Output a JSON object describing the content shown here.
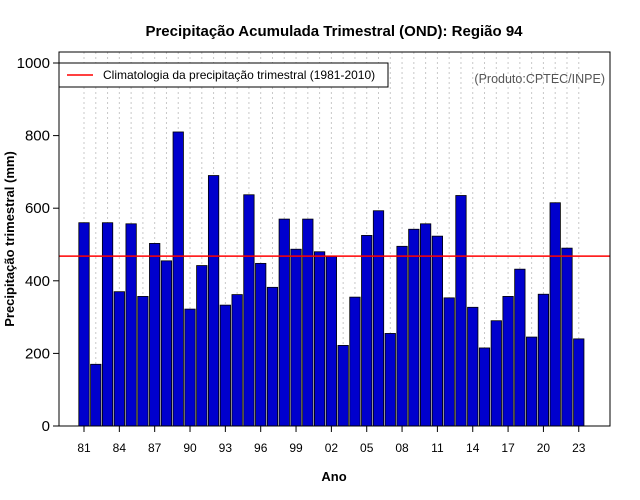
{
  "chart_data": {
    "type": "bar",
    "title": "Precipitação Acumulada Trimestral (OND): Região 94",
    "xlabel": "Ano",
    "ylabel": "Precipitação trimestral (mm)",
    "credit": "(Produto:CPTEC/INPE)",
    "ylim": [
      0,
      1000
    ],
    "yticks": [
      0,
      200,
      400,
      600,
      800,
      1000
    ],
    "xtick_labels": [
      "81",
      "84",
      "87",
      "90",
      "93",
      "96",
      "99",
      "02",
      "05",
      "08",
      "11",
      "14",
      "17",
      "20",
      "23"
    ],
    "grid": true,
    "years": [
      1981,
      1982,
      1983,
      1984,
      1985,
      1986,
      1987,
      1988,
      1989,
      1990,
      1991,
      1992,
      1993,
      1994,
      1995,
      1996,
      1997,
      1998,
      1999,
      2000,
      2001,
      2002,
      2003,
      2004,
      2005,
      2006,
      2007,
      2008,
      2009,
      2010,
      2011,
      2012,
      2013,
      2014,
      2015,
      2016,
      2017,
      2018,
      2019,
      2020,
      2021,
      2022,
      2023
    ],
    "values": [
      560,
      170,
      560,
      370,
      557,
      357,
      503,
      455,
      810,
      322,
      442,
      690,
      333,
      362,
      637,
      448,
      382,
      570,
      487,
      570,
      480,
      467,
      222,
      355,
      525,
      593,
      255,
      495,
      542,
      557,
      523,
      353,
      635,
      327,
      215,
      290,
      357,
      432,
      245,
      363,
      615,
      490,
      240
    ],
    "bar_color": "#0000cd",
    "climatology": {
      "label": "Climatologia da precipitação trimestral (1981-2010)",
      "value": 468,
      "color": "#ff0000"
    },
    "legend_position": "top-left"
  }
}
